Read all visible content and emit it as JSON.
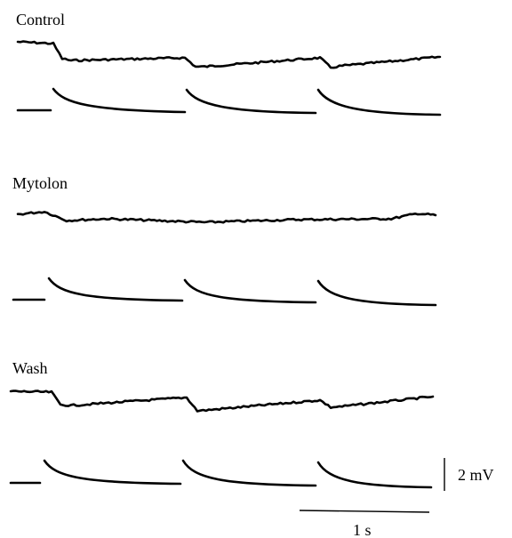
{
  "panels": [
    {
      "label": "Control"
    },
    {
      "label": "Mytolon"
    },
    {
      "label": "Wash"
    }
  ],
  "scale_bar": {
    "vertical_label": "2 mV",
    "horizontal_label": "1 s"
  }
}
